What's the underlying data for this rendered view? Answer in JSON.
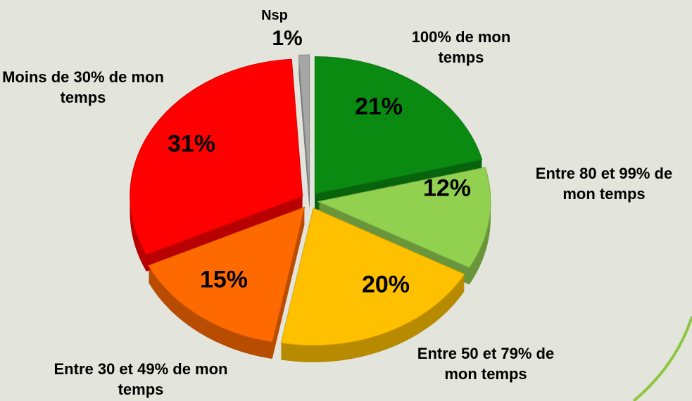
{
  "chart_data": {
    "type": "pie",
    "categories": [
      "100% de mon temps",
      "Entre 80 et 99% de mon temps",
      "Entre 50 et 79% de mon temps",
      "Entre 30 et 49% de mon temps",
      "Moins de 30% de mon temps",
      "Nsp"
    ],
    "values": [
      21,
      12,
      20,
      15,
      31,
      1
    ],
    "value_labels": [
      "21%",
      "12%",
      "20%",
      "15%",
      "31%",
      "1%"
    ],
    "colors": [
      "#0b8a12",
      "#92d050",
      "#ffc000",
      "#ff6a00",
      "#ff0000",
      "#a6a6a6"
    ]
  }
}
